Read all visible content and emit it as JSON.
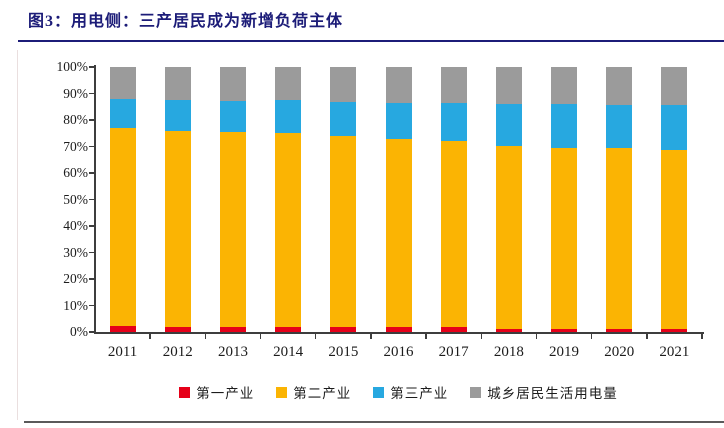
{
  "figure": {
    "title": "图3：用电侧：三产居民成为新增负荷主体",
    "accent_color": "#1c1c78"
  },
  "chart_data": {
    "type": "bar",
    "stacked": true,
    "unit": "percent_share",
    "title": "用电侧：三产居民成为新增负荷主体",
    "xlabel": "",
    "ylabel": "",
    "ylim": [
      0,
      100
    ],
    "grid": false,
    "legend_position": "bottom",
    "yticks": [
      "0%",
      "10%",
      "20%",
      "30%",
      "40%",
      "50%",
      "60%",
      "70%",
      "80%",
      "90%",
      "100%"
    ],
    "categories": [
      "2011",
      "2012",
      "2013",
      "2014",
      "2015",
      "2016",
      "2017",
      "2018",
      "2019",
      "2020",
      "2021"
    ],
    "series": [
      {
        "name": "第一产业",
        "color": "#e60019",
        "values": [
          2.2,
          2.0,
          1.9,
          1.8,
          1.8,
          1.8,
          1.8,
          1.1,
          1.1,
          1.1,
          1.2
        ]
      },
      {
        "name": "第二产业",
        "color": "#fbb403",
        "values": [
          74.9,
          73.9,
          73.6,
          73.4,
          72.2,
          71.0,
          70.3,
          69.0,
          68.3,
          68.2,
          67.5
        ]
      },
      {
        "name": "第三产业",
        "color": "#27a8e0",
        "values": [
          10.8,
          11.5,
          11.8,
          12.2,
          12.9,
          13.6,
          14.3,
          15.8,
          16.5,
          16.4,
          17.1
        ]
      },
      {
        "name": "城乡居民生活用电量",
        "color": "#9b9b9b",
        "values": [
          12.1,
          12.6,
          12.7,
          12.6,
          13.1,
          13.6,
          13.6,
          14.1,
          14.1,
          14.3,
          14.2
        ]
      }
    ]
  }
}
